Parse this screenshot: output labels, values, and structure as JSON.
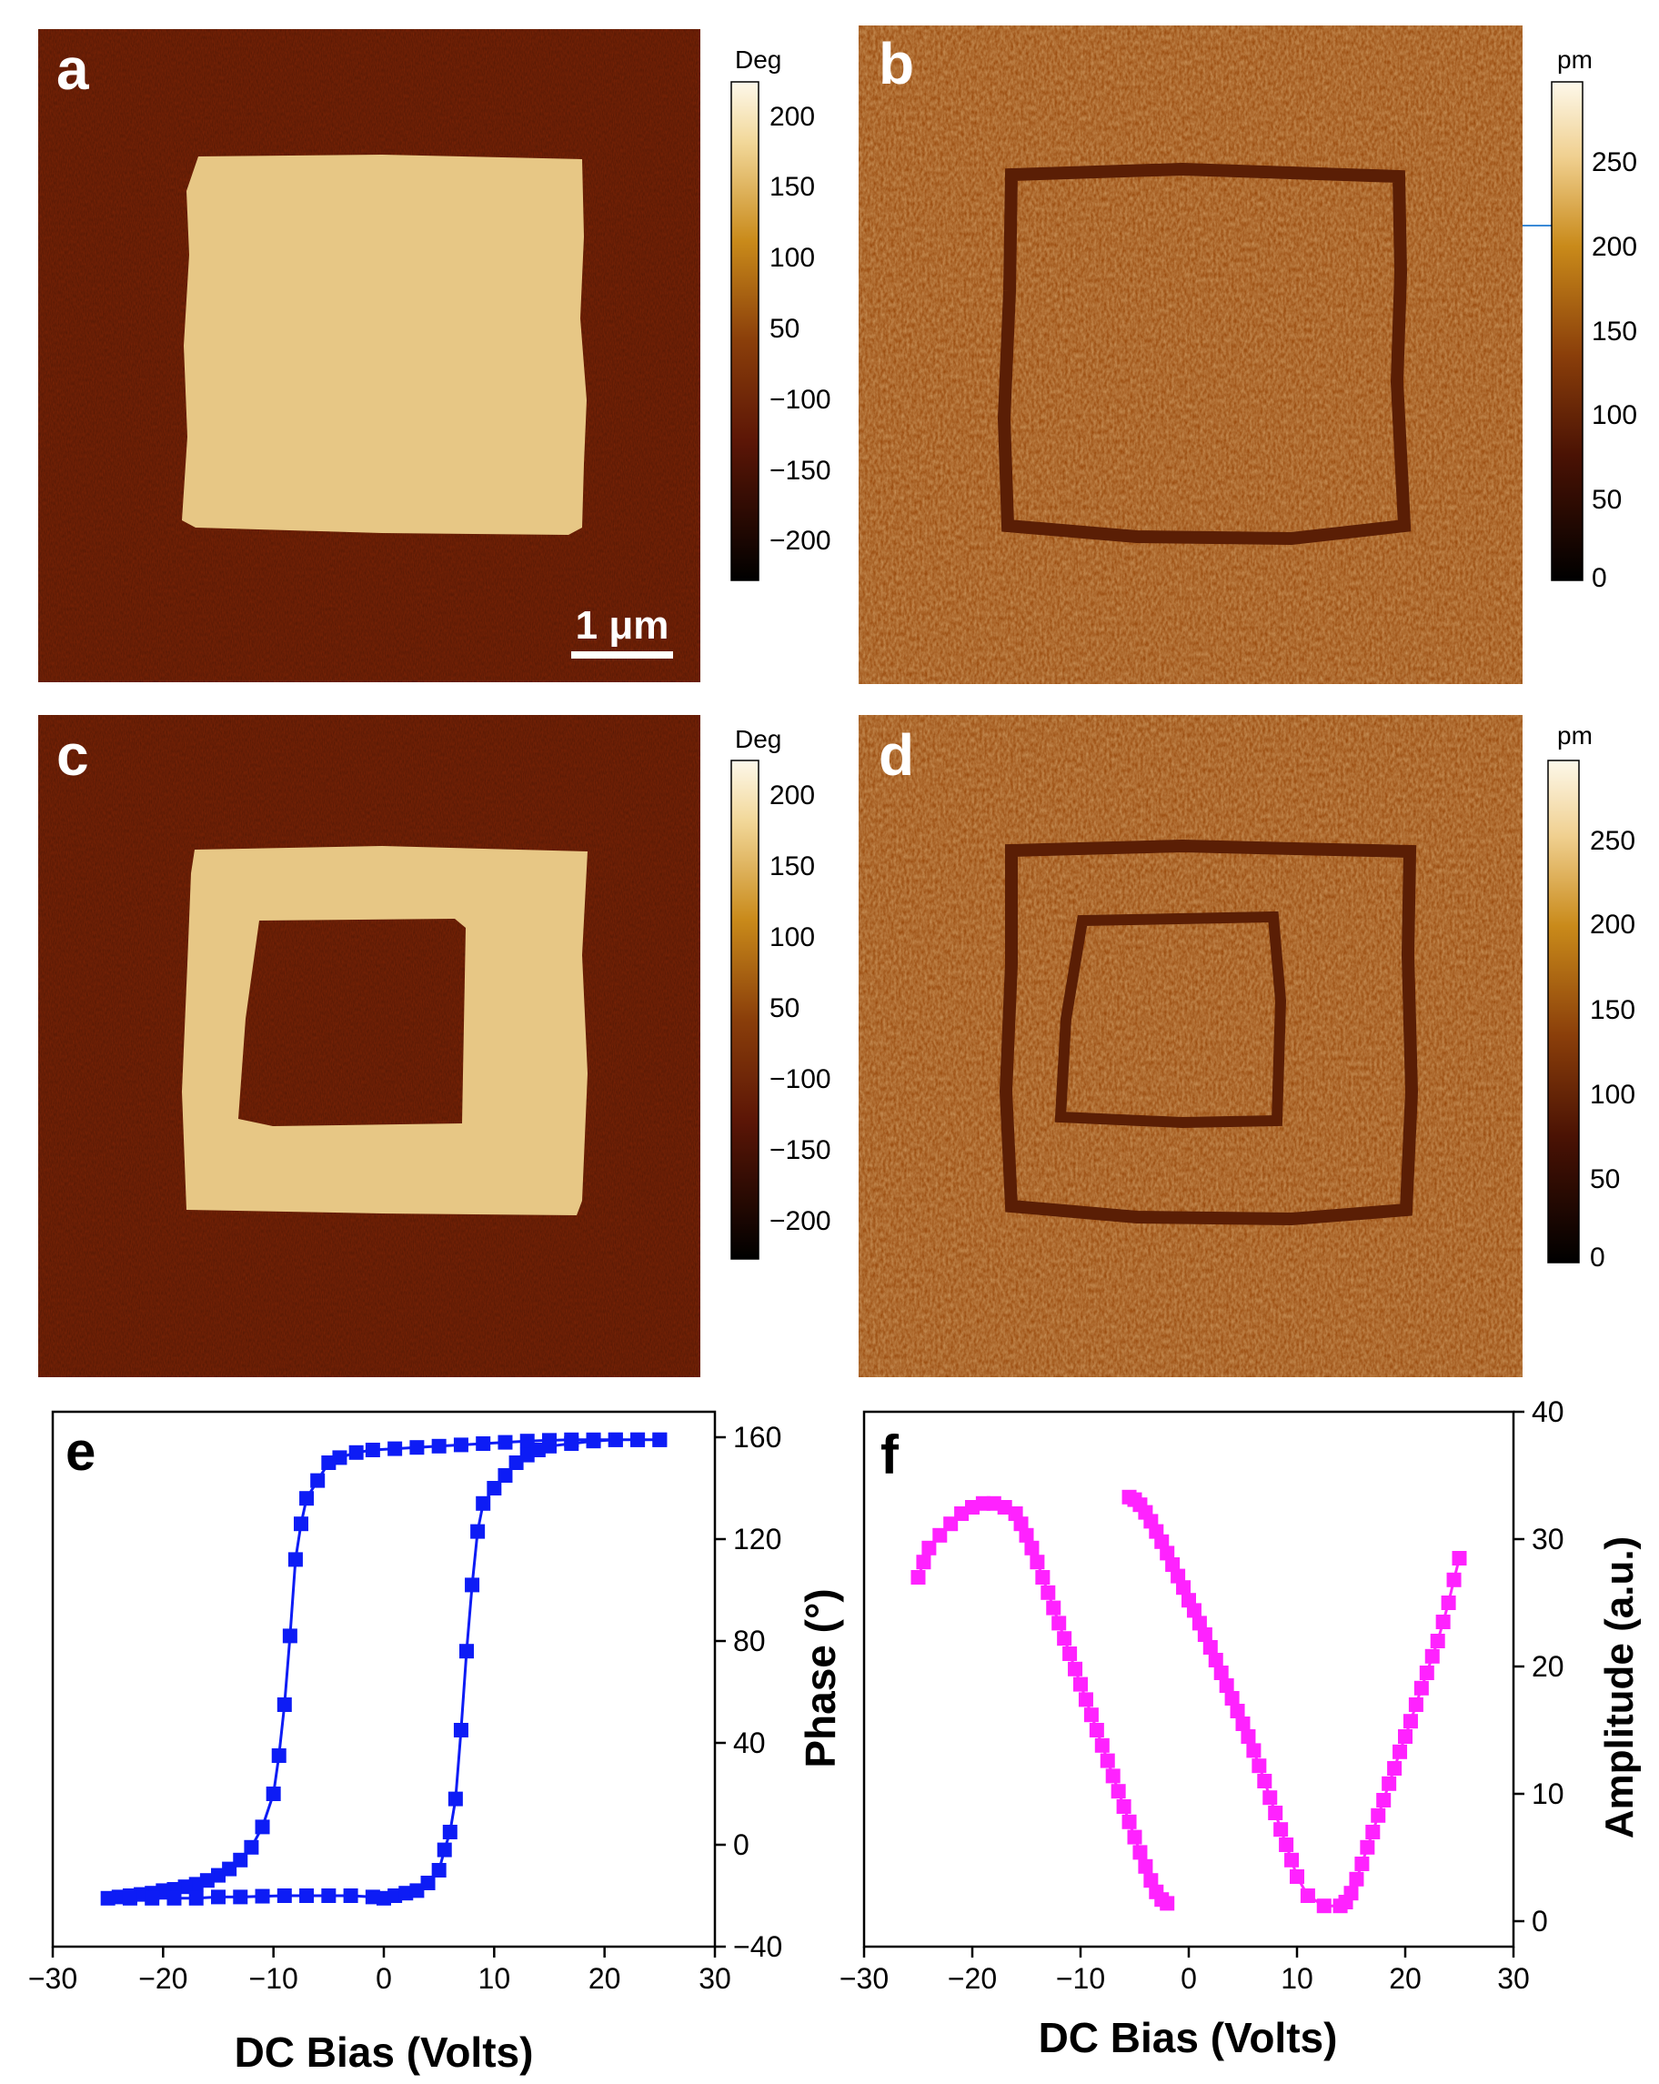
{
  "colors": {
    "phase_bg": "#7e2406",
    "phase_domain": "#e7c785",
    "amp_bg": "#9b4d10",
    "amp_wall": "#5a1e05",
    "blue_series": "#0d1cf5",
    "magenta_series": "#ff22ff"
  },
  "panels": {
    "a": {
      "letter": "a",
      "colorbar_unit": "Deg",
      "colorbar_ticks": [
        "200",
        "150",
        "100",
        "50",
        "−100",
        "−150",
        "−200"
      ]
    },
    "b": {
      "letter": "b",
      "colorbar_unit": "pm",
      "colorbar_ticks": [
        "250",
        "200",
        "150",
        "100",
        "50",
        "0"
      ]
    },
    "c": {
      "letter": "c",
      "colorbar_unit": "Deg",
      "colorbar_ticks": [
        "200",
        "150",
        "100",
        "50",
        "−100",
        "−150",
        "−200"
      ]
    },
    "d": {
      "letter": "d",
      "colorbar_unit": "pm",
      "colorbar_ticks": [
        "250",
        "200",
        "150",
        "100",
        "50",
        "0"
      ]
    },
    "scale_bar": "1 μm"
  },
  "chart_data": [
    {
      "panel": "e",
      "type": "scatter",
      "xlabel": "DC Bias (Volts)",
      "ylabel": "Phase (°)",
      "xlim": [
        -30,
        30
      ],
      "ylim": [
        -40,
        170
      ],
      "xticks": [
        -30,
        -20,
        -10,
        0,
        10,
        20,
        30
      ],
      "yticks": [
        -40,
        0,
        40,
        80,
        120,
        160
      ],
      "y_axis_side": "right",
      "series": [
        {
          "color": "#0d1cf5",
          "points": [
            [
              25,
              159
            ],
            [
              23,
              159
            ],
            [
              21,
              159
            ],
            [
              19,
              159
            ],
            [
              17,
              159
            ],
            [
              15,
              158.8
            ],
            [
              13,
              158.5
            ],
            [
              11,
              158
            ],
            [
              9,
              157.5
            ],
            [
              7,
              157
            ],
            [
              5,
              156.5
            ],
            [
              3,
              156
            ],
            [
              1,
              155.5
            ],
            [
              -1,
              155
            ],
            [
              -2.5,
              154
            ],
            [
              -4,
              152
            ],
            [
              -5,
              150
            ],
            [
              -6,
              143
            ],
            [
              -7,
              136
            ],
            [
              -7.5,
              126
            ],
            [
              -8,
              112
            ],
            [
              -8.5,
              82
            ],
            [
              -9,
              55
            ],
            [
              -9.5,
              35
            ],
            [
              -10,
              20
            ],
            [
              -11,
              7
            ],
            [
              -12,
              -1
            ],
            [
              -13,
              -6
            ],
            [
              -14,
              -9.5
            ],
            [
              -15,
              -12
            ],
            [
              -16,
              -14
            ],
            [
              -17,
              -15.5
            ],
            [
              -18,
              -16.5
            ],
            [
              -19,
              -17.5
            ],
            [
              -20,
              -18
            ],
            [
              -21,
              -19
            ],
            [
              -22,
              -19.5
            ],
            [
              -23,
              -20
            ],
            [
              -24,
              -20.5
            ],
            [
              -25,
              -21
            ],
            [
              -23,
              -21
            ],
            [
              -21,
              -21
            ],
            [
              -19,
              -21
            ],
            [
              -17,
              -21
            ],
            [
              -15,
              -20.5
            ],
            [
              -13,
              -20.5
            ],
            [
              -11,
              -20.2
            ],
            [
              -9,
              -20
            ],
            [
              -7,
              -20
            ],
            [
              -5,
              -20
            ],
            [
              -3,
              -20
            ],
            [
              -1,
              -20.5
            ],
            [
              0,
              -21
            ],
            [
              1,
              -20
            ],
            [
              2,
              -19
            ],
            [
              3,
              -18
            ],
            [
              4,
              -15
            ],
            [
              5,
              -10
            ],
            [
              5.5,
              -2
            ],
            [
              6,
              5
            ],
            [
              6.5,
              18
            ],
            [
              7,
              45
            ],
            [
              7.5,
              76
            ],
            [
              8,
              102
            ],
            [
              8.5,
              123
            ],
            [
              9,
              134
            ],
            [
              10,
              140
            ],
            [
              11,
              145
            ],
            [
              12,
              150
            ],
            [
              13,
              153
            ],
            [
              14,
              155
            ],
            [
              15,
              156.5
            ],
            [
              17,
              157.5
            ],
            [
              19,
              158.5
            ],
            [
              21,
              159
            ],
            [
              23,
              159
            ],
            [
              25,
              159
            ]
          ]
        }
      ]
    },
    {
      "panel": "f",
      "type": "scatter",
      "xlabel": "DC Bias (Volts)",
      "ylabel": "Amplitude (a.u.)",
      "xlim": [
        -30,
        30
      ],
      "ylim": [
        -2,
        40
      ],
      "xticks": [
        -30,
        -20,
        -10,
        0,
        10,
        20,
        30
      ],
      "yticks": [
        0,
        10,
        20,
        30,
        40
      ],
      "y_axis_side": "right",
      "series": [
        {
          "color": "#ff22ff",
          "points": [
            [
              25,
              28.5
            ],
            [
              24.5,
              26.8
            ],
            [
              24,
              25
            ],
            [
              23.5,
              23.5
            ],
            [
              23,
              22
            ],
            [
              22.5,
              20.8
            ],
            [
              22,
              19.5
            ],
            [
              21.5,
              18.3
            ],
            [
              21,
              17
            ],
            [
              20.5,
              15.7
            ],
            [
              20,
              14.5
            ],
            [
              19.5,
              13.3
            ],
            [
              19,
              12
            ],
            [
              18.5,
              10.8
            ],
            [
              18,
              9.5
            ],
            [
              17.5,
              8.3
            ],
            [
              17,
              7
            ],
            [
              16.5,
              5.8
            ],
            [
              16,
              4.5
            ],
            [
              15.5,
              3.3
            ],
            [
              15,
              2.2
            ],
            [
              14.5,
              1.5
            ],
            [
              14,
              1.2
            ],
            [
              12.5,
              1.2
            ],
            [
              11,
              2
            ],
            [
              10,
              3.5
            ],
            [
              9.5,
              4.8
            ],
            [
              9,
              6
            ],
            [
              8.5,
              7.2
            ],
            [
              8,
              8.5
            ],
            [
              7.5,
              9.7
            ],
            [
              7,
              11
            ],
            [
              6.5,
              12.2
            ],
            [
              6,
              13.4
            ],
            [
              5.5,
              14.5
            ],
            [
              5,
              15.5
            ],
            [
              4.5,
              16.5
            ],
            [
              4,
              17.5
            ],
            [
              3.5,
              18.5
            ],
            [
              3,
              19.5
            ],
            [
              2.5,
              20.5
            ],
            [
              2,
              21.5
            ],
            [
              1.5,
              22.5
            ],
            [
              1,
              23.4
            ],
            [
              0.5,
              24.4
            ],
            [
              0,
              25.2
            ],
            [
              -0.5,
              26.2
            ],
            [
              -1,
              27.1
            ],
            [
              -1.5,
              28
            ],
            [
              -2,
              28.9
            ],
            [
              -2.5,
              29.8
            ],
            [
              -3,
              30.6
            ],
            [
              -3.5,
              31.4
            ],
            [
              -4,
              32.1
            ],
            [
              -4.5,
              32.7
            ],
            [
              -5,
              33.1
            ],
            [
              -5.5,
              33.3
            ]
          ]
        },
        {
          "color": "#ff22ff",
          "points": [
            [
              -25,
              27
            ],
            [
              -24.5,
              28.2
            ],
            [
              -24,
              29.3
            ],
            [
              -23,
              30.3
            ],
            [
              -22,
              31.2
            ],
            [
              -21,
              32
            ],
            [
              -20,
              32.5
            ],
            [
              -19,
              32.8
            ],
            [
              -18,
              32.8
            ],
            [
              -17,
              32.5
            ],
            [
              -16,
              32
            ],
            [
              -15.5,
              31.2
            ],
            [
              -15,
              30.3
            ],
            [
              -14.5,
              29.3
            ],
            [
              -14,
              28.2
            ],
            [
              -13.5,
              27
            ],
            [
              -13,
              25.8
            ],
            [
              -12.5,
              24.6
            ],
            [
              -12,
              23.4
            ],
            [
              -11.5,
              22.2
            ],
            [
              -11,
              21
            ],
            [
              -10.5,
              19.8
            ],
            [
              -10,
              18.6
            ],
            [
              -9.5,
              17.4
            ],
            [
              -9,
              16.2
            ],
            [
              -8.5,
              15
            ],
            [
              -8,
              13.8
            ],
            [
              -7.5,
              12.6
            ],
            [
              -7,
              11.4
            ],
            [
              -6.5,
              10.2
            ],
            [
              -6,
              9
            ],
            [
              -5.5,
              7.8
            ],
            [
              -5,
              6.6
            ],
            [
              -4.5,
              5.4
            ],
            [
              -4,
              4.3
            ],
            [
              -3.5,
              3.2
            ],
            [
              -3,
              2.3
            ],
            [
              -2.5,
              1.7
            ],
            [
              -2,
              1.4
            ]
          ]
        }
      ]
    }
  ]
}
